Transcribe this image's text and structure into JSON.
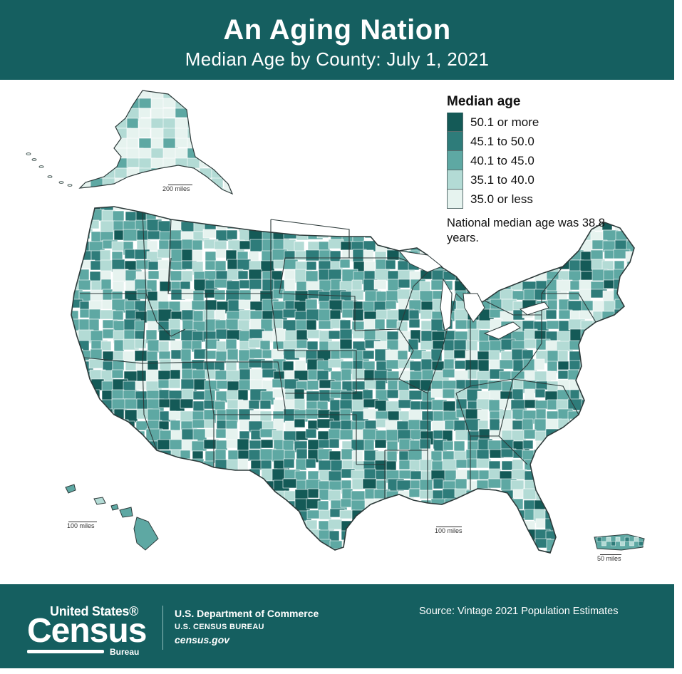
{
  "header": {
    "title": "An Aging Nation",
    "subtitle": "Median Age by County: July 1, 2021"
  },
  "legend": {
    "title": "Median age",
    "items": [
      {
        "label": "50.1 or more",
        "color": "#145a57"
      },
      {
        "label": "45.1 to 50.0",
        "color": "#2e7c7a"
      },
      {
        "label": "40.1 to 45.0",
        "color": "#5ea8a3"
      },
      {
        "label": "35.1 to 40.0",
        "color": "#b3dbd5"
      },
      {
        "label": "35.0 or less",
        "color": "#e6f3ef"
      }
    ],
    "note": "National median age was 38.8 years."
  },
  "scales": {
    "alaska": "200 miles",
    "hawaii": "100 miles",
    "conus": "100 miles",
    "puerto_rico": "50 miles"
  },
  "footer": {
    "logo_top": "United States®",
    "logo_main": "Census",
    "logo_sub": "Bureau",
    "department": "U.S. Department of Commerce",
    "bureau": "U.S. CENSUS BUREAU",
    "site": "census.gov",
    "source": "Source:  Vintage 2021 Population Estimates"
  },
  "colors": {
    "band": "#155f60",
    "state_border": "#2d3a3a"
  }
}
